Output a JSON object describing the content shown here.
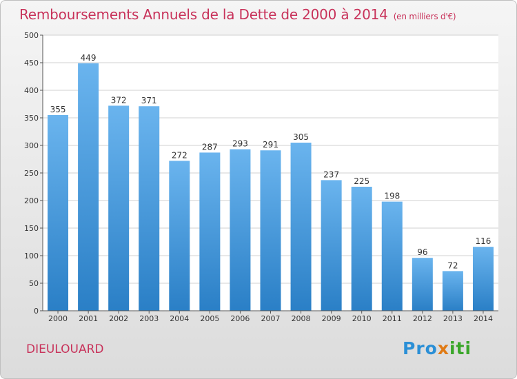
{
  "header": {
    "title": "Remboursements Annuels de la Dette de 2000 à 2014",
    "unit": "(en milliers d'€)"
  },
  "footer": {
    "commune": "DIEULOUARD",
    "logo": {
      "p1": "Pro",
      "p2": "x",
      "p3": "iti"
    }
  },
  "colors": {
    "title": "#c8325a",
    "bar_top": "#6ab4ee",
    "bar_bottom": "#2a7fc6",
    "logo_blue": "#2a8fd6",
    "logo_orange": "#e07a14",
    "logo_green": "#3aa62a"
  },
  "chart_data": {
    "type": "bar",
    "title": "Remboursements Annuels de la Dette de 2000 à 2014",
    "subtitle": "(en milliers d'€)",
    "xlabel": "",
    "ylabel": "",
    "categories": [
      "2000",
      "2001",
      "2002",
      "2003",
      "2004",
      "2005",
      "2006",
      "2007",
      "2008",
      "2009",
      "2010",
      "2011",
      "2012",
      "2013",
      "2014"
    ],
    "values": [
      355,
      449,
      372,
      371,
      272,
      287,
      293,
      291,
      305,
      237,
      225,
      198,
      96,
      72,
      116
    ],
    "ylim": [
      0,
      500
    ],
    "yticks": [
      0,
      50,
      100,
      150,
      200,
      250,
      300,
      350,
      400,
      450,
      500
    ],
    "grid": "horizontal",
    "legend": "none"
  }
}
